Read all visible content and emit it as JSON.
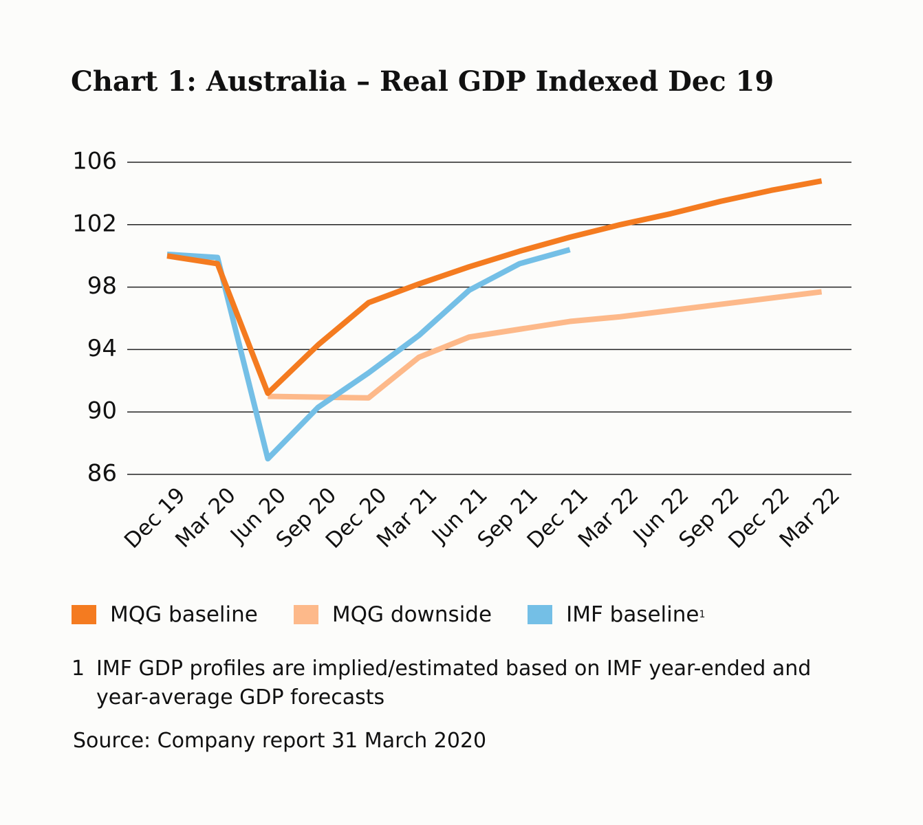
{
  "chart_data": {
    "type": "line",
    "title": "Chart 1: Australia – Real GDP Indexed Dec 19",
    "categories": [
      "Dec 19",
      "Mar 20",
      "Jun 20",
      "Sep 20",
      "Dec 20",
      "Mar 21",
      "Jun 21",
      "Sep 21",
      "Dec 21",
      "Mar 22",
      "Jun 22",
      "Sep 22",
      "Dec 22",
      "Mar 22"
    ],
    "series": [
      {
        "name": "MQG baseline",
        "color": "#f47b20",
        "values": [
          100.0,
          99.5,
          91.2,
          94.3,
          97.0,
          98.2,
          99.3,
          100.3,
          101.2,
          102.0,
          102.7,
          103.5,
          104.2,
          104.8
        ]
      },
      {
        "name": "MQG downside",
        "color": "#fdb98a",
        "values": [
          null,
          null,
          91.0,
          90.95,
          90.9,
          93.5,
          94.8,
          95.3,
          95.8,
          96.1,
          96.5,
          96.9,
          97.3,
          97.7
        ]
      },
      {
        "name": "IMF baseline",
        "color": "#74bfe6",
        "values": [
          100.1,
          99.9,
          87.0,
          90.3,
          92.5,
          94.9,
          97.8,
          99.5,
          100.4,
          null,
          null,
          null,
          null,
          null
        ]
      }
    ],
    "ylim": [
      86,
      106
    ],
    "yticks": [
      86,
      90,
      94,
      98,
      102,
      106
    ],
    "grid": true,
    "footnote": {
      "marker": "1",
      "text": "IMF GDP profiles are implied/estimated based on IMF year-ended and year-average GDP forecasts"
    },
    "source": "Source: Company report 31 March 2020"
  }
}
